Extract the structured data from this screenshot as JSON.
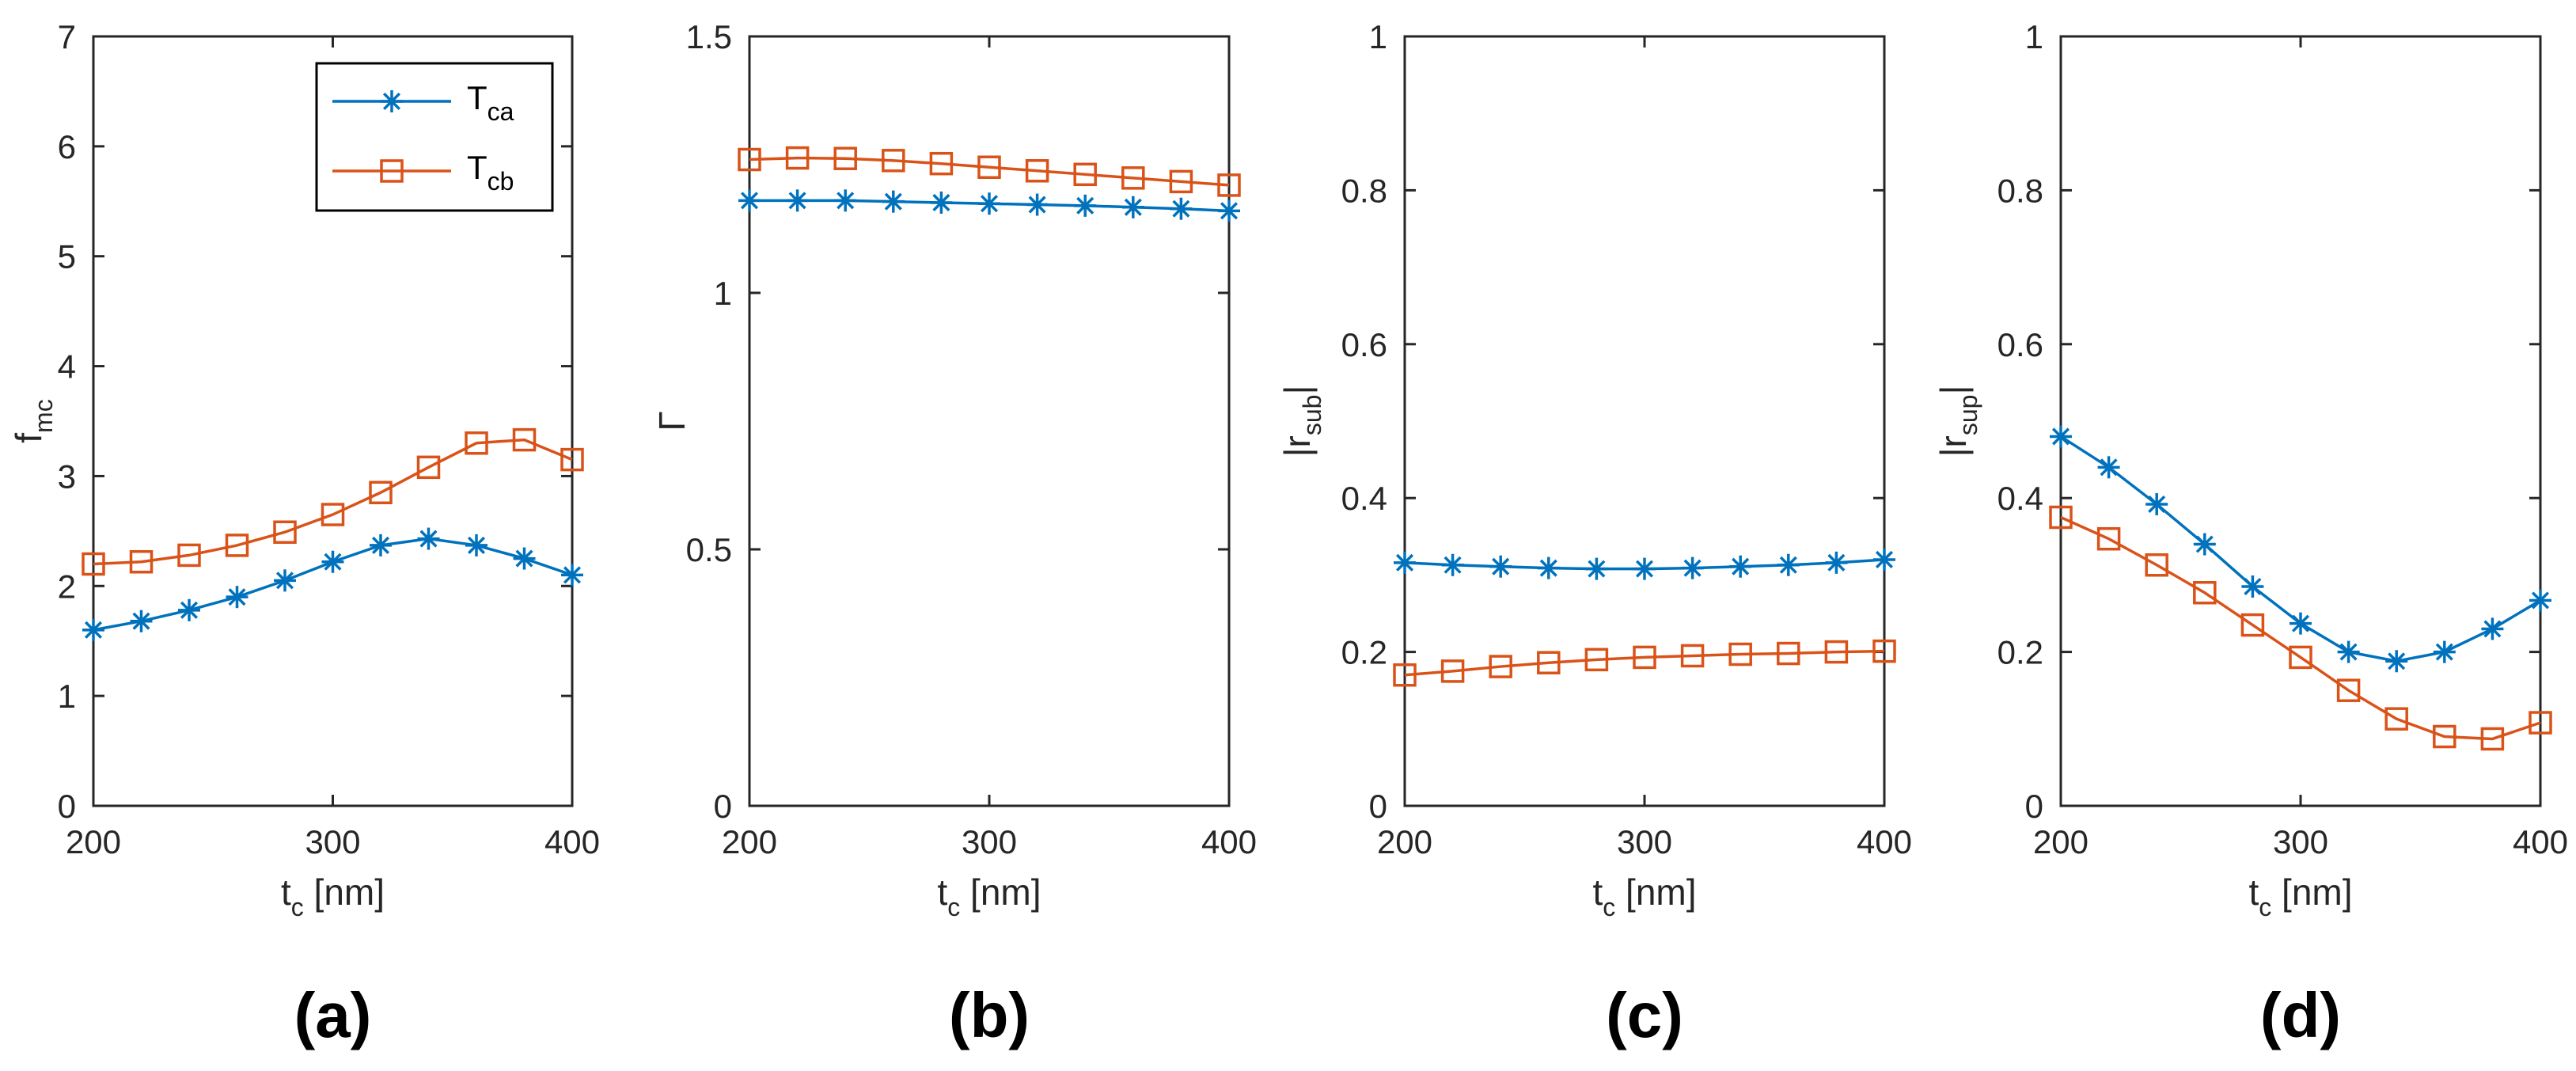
{
  "colors": {
    "series_a": "#0072BD",
    "series_b": "#D95319",
    "axis": "#262626"
  },
  "legend": {
    "entries": [
      {
        "main": "T",
        "sub": "ca",
        "marker": "asterisk"
      },
      {
        "main": "T",
        "sub": "cb",
        "marker": "square"
      }
    ]
  },
  "chart_data": [
    {
      "type": "line",
      "panel_label": "(a)",
      "x": [
        200,
        220,
        240,
        260,
        280,
        300,
        320,
        340,
        360,
        380,
        400
      ],
      "xlim": [
        200,
        400
      ],
      "xticks": [
        200,
        300,
        400
      ],
      "xlabel": {
        "main": "t",
        "sub": "c",
        "rest": " [nm]"
      },
      "ylabel": {
        "main": "f",
        "sub": "mc",
        "rest": ""
      },
      "ylim": [
        0,
        7
      ],
      "yticks": [
        0,
        1,
        2,
        3,
        4,
        5,
        6,
        7
      ],
      "yticklabels": [
        "0",
        "1",
        "2",
        "3",
        "4",
        "5",
        "6",
        "7"
      ],
      "legend_position": "top-right",
      "series": [
        {
          "name": "T_ca",
          "marker": "asterisk",
          "values": [
            1.6,
            1.68,
            1.78,
            1.9,
            2.05,
            2.22,
            2.37,
            2.43,
            2.37,
            2.25,
            2.1
          ]
        },
        {
          "name": "T_cb",
          "marker": "square",
          "values": [
            2.2,
            2.22,
            2.28,
            2.37,
            2.49,
            2.65,
            2.85,
            3.08,
            3.3,
            3.33,
            3.15
          ]
        }
      ]
    },
    {
      "type": "line",
      "panel_label": "(b)",
      "x": [
        200,
        220,
        240,
        260,
        280,
        300,
        320,
        340,
        360,
        380,
        400
      ],
      "xlim": [
        200,
        400
      ],
      "xticks": [
        200,
        300,
        400
      ],
      "xlabel": {
        "main": "t",
        "sub": "c",
        "rest": " [nm]"
      },
      "ylabel": {
        "main": "Γ",
        "sub": "",
        "rest": ""
      },
      "ylim": [
        0,
        1.5
      ],
      "yticks": [
        0,
        0.5,
        1,
        1.5
      ],
      "yticklabels": [
        "0",
        "0.5",
        "1",
        "1.5"
      ],
      "series": [
        {
          "name": "T_ca",
          "marker": "asterisk",
          "values": [
            1.18,
            1.18,
            1.18,
            1.178,
            1.176,
            1.174,
            1.172,
            1.17,
            1.167,
            1.164,
            1.16
          ]
        },
        {
          "name": "T_cb",
          "marker": "square",
          "values": [
            1.26,
            1.263,
            1.262,
            1.258,
            1.252,
            1.245,
            1.238,
            1.231,
            1.224,
            1.217,
            1.21
          ]
        }
      ]
    },
    {
      "type": "line",
      "panel_label": "(c)",
      "x": [
        200,
        220,
        240,
        260,
        280,
        300,
        320,
        340,
        360,
        380,
        400
      ],
      "xlim": [
        200,
        400
      ],
      "xticks": [
        200,
        300,
        400
      ],
      "xlabel": {
        "main": "t",
        "sub": "c",
        "rest": " [nm]"
      },
      "ylabel": {
        "main": "|r",
        "sub": "sub",
        "rest": "|"
      },
      "ylim": [
        0,
        1
      ],
      "yticks": [
        0,
        0.2,
        0.4,
        0.6,
        0.8,
        1
      ],
      "yticklabels": [
        "0",
        "0.2",
        "0.4",
        "0.6",
        "0.8",
        "1"
      ],
      "series": [
        {
          "name": "T_ca",
          "marker": "asterisk",
          "values": [
            0.316,
            0.313,
            0.311,
            0.309,
            0.308,
            0.308,
            0.309,
            0.311,
            0.313,
            0.316,
            0.32
          ]
        },
        {
          "name": "T_cb",
          "marker": "square",
          "values": [
            0.17,
            0.175,
            0.181,
            0.186,
            0.19,
            0.193,
            0.195,
            0.197,
            0.198,
            0.2,
            0.201
          ]
        }
      ]
    },
    {
      "type": "line",
      "panel_label": "(d)",
      "x": [
        200,
        220,
        240,
        260,
        280,
        300,
        320,
        340,
        360,
        380,
        400
      ],
      "xlim": [
        200,
        400
      ],
      "xticks": [
        200,
        300,
        400
      ],
      "xlabel": {
        "main": "t",
        "sub": "c",
        "rest": " [nm]"
      },
      "ylabel": {
        "main": "|r",
        "sub": "sup",
        "rest": "|"
      },
      "ylim": [
        0,
        1
      ],
      "yticks": [
        0,
        0.2,
        0.4,
        0.6,
        0.8,
        1
      ],
      "yticklabels": [
        "0",
        "0.2",
        "0.4",
        "0.6",
        "0.8",
        "1"
      ],
      "series": [
        {
          "name": "T_ca",
          "marker": "asterisk",
          "values": [
            0.48,
            0.44,
            0.392,
            0.34,
            0.285,
            0.237,
            0.2,
            0.188,
            0.2,
            0.23,
            0.267
          ]
        },
        {
          "name": "T_cb",
          "marker": "square",
          "values": [
            0.375,
            0.347,
            0.313,
            0.277,
            0.235,
            0.193,
            0.15,
            0.113,
            0.09,
            0.087,
            0.108
          ]
        }
      ]
    }
  ]
}
